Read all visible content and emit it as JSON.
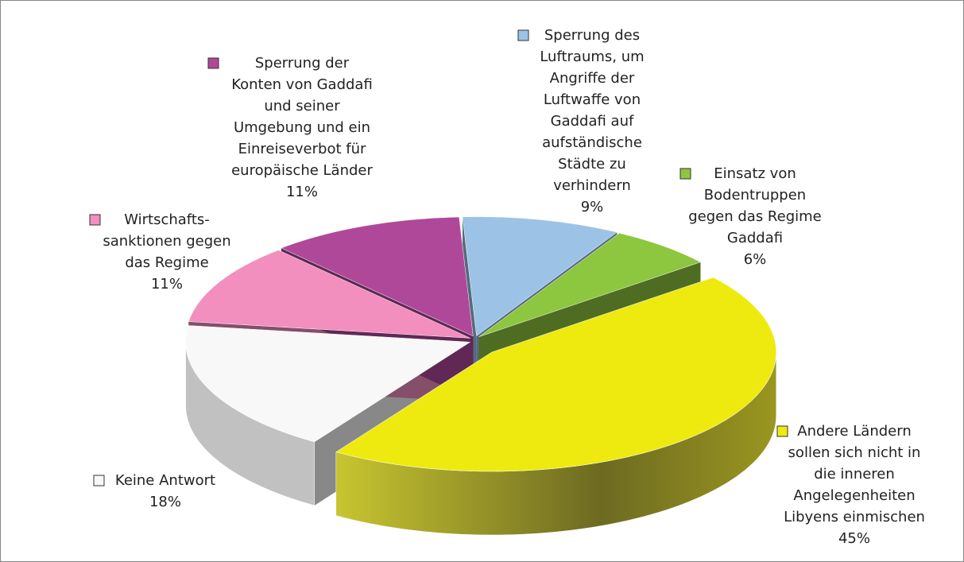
{
  "chart_data": {
    "type": "pie3d",
    "categories": [
      "Sperrung des\nLuftraums, um\nAngriffe der\nLuftwaffe von\nGaddafi auf\naufständische\nStädte zu\nverhindern",
      "Einsatz von\nBodentruppen\ngegen das Regime\nGaddafi",
      "Andere Ländern\nsollen sich nicht in\ndie inneren\nAngelegenheiten\nLibyens einmischen",
      "Keine Antwort",
      "Wirtschafts-\nsanktionen gegen\ndas Regime",
      "Sperrung der\nKonten von Gaddafi\nund seiner\nUmgebung und ein\nEinreiseverbot für\neuropäische Länder"
    ],
    "values": [
      9,
      6,
      45,
      18,
      11,
      11
    ],
    "value_labels": [
      "9%",
      "6%",
      "45%",
      "18%",
      "11%",
      "11%"
    ],
    "colors": [
      "#9cc3e6",
      "#8dc63f",
      "#eeea10",
      "#f8f8f8",
      "#f28fbf",
      "#b0489a"
    ]
  }
}
